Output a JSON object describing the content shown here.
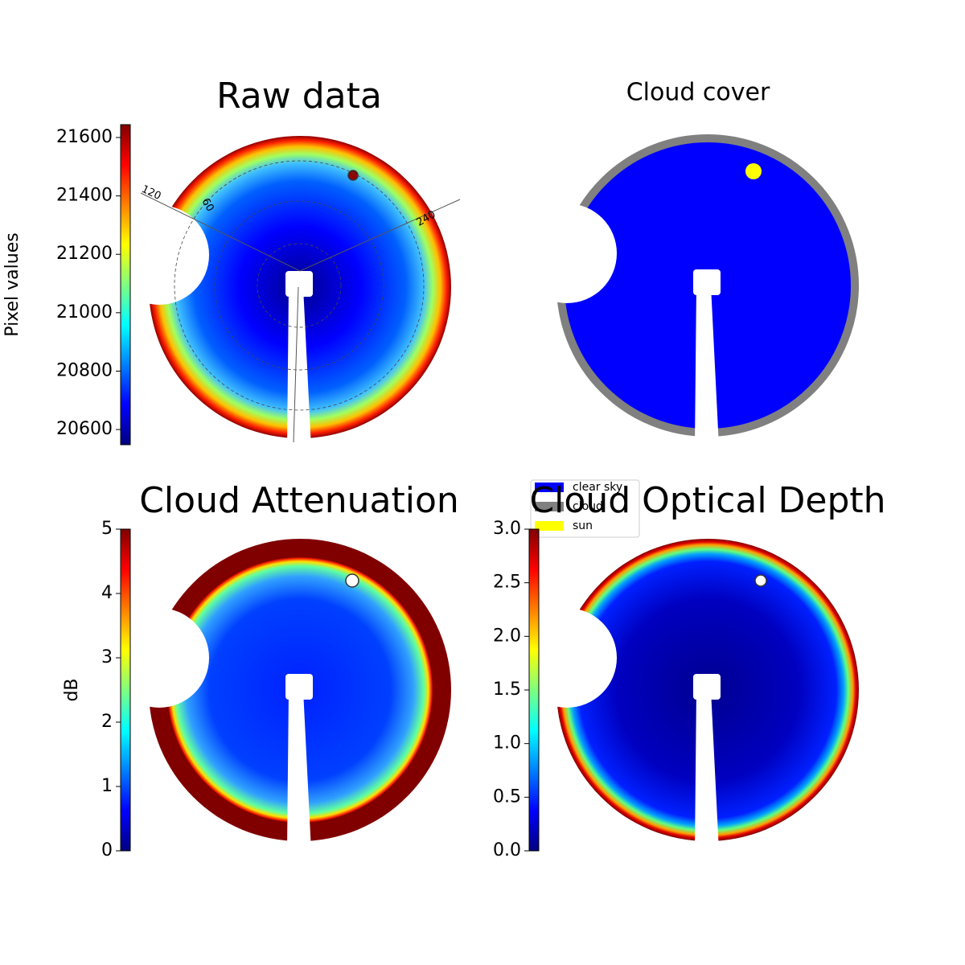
{
  "chart_data": [
    {
      "type": "image",
      "title": "Raw data",
      "annotations": [
        "120",
        "60",
        "240"
      ],
      "colorbar": {
        "label": "Pixel values",
        "lim": [
          20548,
          21644
        ],
        "ticks": [
          20600,
          20800,
          21000,
          21200,
          21400,
          21600
        ]
      }
    },
    {
      "type": "image",
      "title": "Cloud cover",
      "legend": [
        {
          "name": "clear sky",
          "color": "#0000ff"
        },
        {
          "name": "cloud",
          "color": "#808080"
        },
        {
          "name": "sun",
          "color": "#ffff00"
        }
      ]
    },
    {
      "type": "image",
      "title": "Cloud Attenuation",
      "colorbar": {
        "label": "dB",
        "lim": [
          0,
          5
        ],
        "ticks": [
          0,
          1,
          2,
          3,
          4,
          5
        ]
      }
    },
    {
      "type": "image",
      "title": "Cloud Optical Depth",
      "colorbar": {
        "lim": [
          0,
          3
        ],
        "ticks": [
          {
            "value": 0,
            "label": "0.0"
          },
          0.5,
          {
            "value": 1,
            "label": "1.0"
          },
          1.5,
          {
            "value": 2,
            "label": "2.0"
          },
          2.5,
          {
            "value": 3,
            "label": "3.0"
          }
        ]
      }
    }
  ]
}
